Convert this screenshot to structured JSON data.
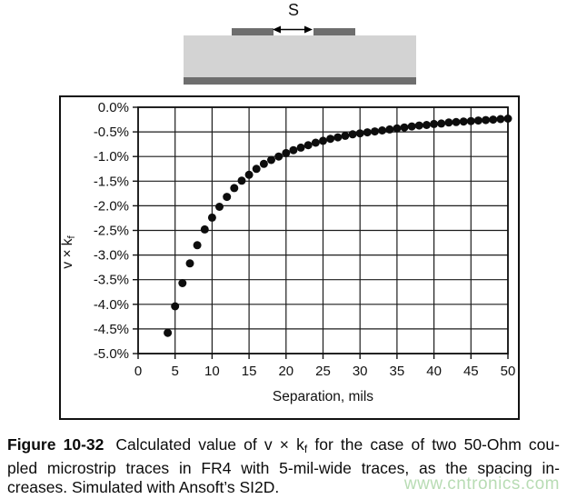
{
  "diagram": {
    "spacing_label": "S",
    "substrate_color": "#d3d3d3",
    "conductor_color": "#6e6e6e"
  },
  "chart_data": {
    "type": "scatter",
    "title": "",
    "xlabel": "Separation, mils",
    "ylabel_base": "v × k",
    "ylabel_sub": "f",
    "xlim": [
      0,
      50
    ],
    "ylim": [
      -5,
      0
    ],
    "grid": true,
    "legend": "none",
    "marker_color": "#0d0d0d",
    "x_ticks": [
      0,
      5,
      10,
      15,
      20,
      25,
      30,
      35,
      40,
      45,
      50
    ],
    "x_tick_labels": [
      "0",
      "5",
      "10",
      "15",
      "20",
      "25",
      "30",
      "35",
      "40",
      "45",
      "50"
    ],
    "y_ticks": [
      0,
      -0.5,
      -1,
      -1.5,
      -2,
      -2.5,
      -3,
      -3.5,
      -4,
      -4.5,
      -5
    ],
    "y_tick_labels": [
      "0.0%",
      "-0.5%",
      "-1.0%",
      "-1.5%",
      "-2.0%",
      "-2.5%",
      "-3.0%",
      "-3.5%",
      "-4.0%",
      "-4.5%",
      "-5.0%"
    ],
    "x": [
      4,
      5,
      6,
      7,
      8,
      9,
      10,
      11,
      12,
      13,
      14,
      15,
      16,
      17,
      18,
      19,
      20,
      21,
      22,
      23,
      24,
      25,
      26,
      27,
      28,
      29,
      30,
      31,
      32,
      33,
      34,
      35,
      36,
      37,
      38,
      39,
      40,
      41,
      42,
      43,
      44,
      45,
      46,
      47,
      48,
      49,
      50
    ],
    "y": [
      -4.58,
      -4.04,
      -3.57,
      -3.17,
      -2.8,
      -2.48,
      -2.24,
      -2.02,
      -1.82,
      -1.64,
      -1.49,
      -1.37,
      -1.25,
      -1.15,
      -1.07,
      -1.0,
      -0.93,
      -0.87,
      -0.82,
      -0.77,
      -0.72,
      -0.68,
      -0.64,
      -0.61,
      -0.58,
      -0.55,
      -0.53,
      -0.51,
      -0.49,
      -0.47,
      -0.45,
      -0.43,
      -0.41,
      -0.39,
      -0.37,
      -0.36,
      -0.34,
      -0.33,
      -0.31,
      -0.3,
      -0.29,
      -0.28,
      -0.27,
      -0.26,
      -0.25,
      -0.24,
      -0.23
    ]
  },
  "caption": {
    "lines": [
      {
        "segments": [
          {
            "text": "Figure 10-32",
            "bold": true
          },
          {
            "text": "Calculated value of v × k"
          },
          {
            "text": "f",
            "sub": true
          },
          {
            "text": " for the case of two 50-Ohm cou-"
          }
        ]
      },
      {
        "segments": [
          {
            "text": "pled microstrip traces in FR4 with 5-mil-wide traces, as the spacing in-"
          }
        ]
      },
      {
        "segments": [
          {
            "text": "creases. Simulated with Ansoft’s SI2D."
          }
        ]
      }
    ]
  },
  "watermark": {
    "text": "www.cntronics.com",
    "color": "#b8dcb4"
  }
}
